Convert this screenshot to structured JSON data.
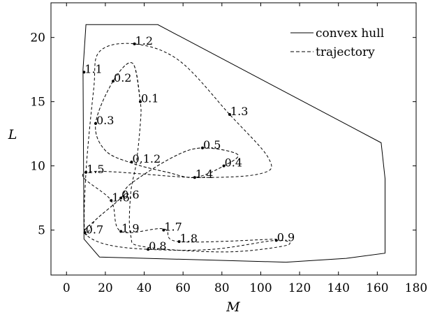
{
  "chart_data": {
    "type": "line",
    "xlabel": "M",
    "ylabel": "L",
    "xlim": [
      -8,
      180
    ],
    "ylim": [
      1.5,
      22.7
    ],
    "x_ticks": [
      0,
      20,
      40,
      60,
      80,
      100,
      120,
      140,
      160,
      180
    ],
    "y_ticks": [
      5,
      10,
      15,
      20
    ],
    "legend_position": "top-right",
    "grid": false,
    "series": [
      {
        "name": "convex hull",
        "style": "solid",
        "points": [
          [
            10,
            21
          ],
          [
            47,
            21
          ],
          [
            162,
            11.8
          ],
          [
            164,
            9
          ],
          [
            164,
            3.2
          ],
          [
            144,
            2.8
          ],
          [
            113,
            2.5
          ],
          [
            17,
            2.9
          ],
          [
            9,
            4.3
          ],
          [
            8.5,
            17.5
          ]
        ]
      },
      {
        "name": "trajectory",
        "style": "dashed",
        "points": [
          [
            38,
            15
          ],
          [
            34,
            18
          ],
          [
            24,
            16.6
          ],
          [
            15,
            13.3
          ],
          [
            20,
            11.2
          ],
          [
            34,
            10.2
          ],
          [
            52,
            9.5
          ],
          [
            66,
            9.1
          ],
          [
            81,
            10
          ],
          [
            88,
            10.9
          ],
          [
            70,
            11.4
          ],
          [
            55,
            10.7
          ],
          [
            33,
            8.6
          ],
          [
            28,
            7.5
          ],
          [
            15,
            5.8
          ],
          [
            9.5,
            4.8
          ],
          [
            20,
            3.9
          ],
          [
            42,
            3.5
          ],
          [
            75,
            3.5
          ],
          [
            108,
            4.2
          ],
          [
            113,
            3.8
          ],
          [
            82,
            3.3
          ],
          [
            40,
            3.7
          ],
          [
            33,
            4.6
          ],
          [
            33,
            7.8
          ],
          [
            36,
            10.3
          ],
          [
            38,
            13.3
          ],
          [
            38,
            15
          ],
          [
            34,
            18
          ],
          [
            24,
            16.6
          ],
          [
            15,
            13.3
          ],
          [
            20,
            11.2
          ],
          [
            34,
            10.2
          ],
          [
            52,
            9.5
          ],
          [
            66,
            9.1
          ],
          [
            81,
            10
          ],
          [
            88,
            10.9
          ],
          [
            70,
            11.4
          ],
          [
            55,
            10.7
          ],
          [
            33,
            8.6
          ],
          [
            28,
            7.5
          ],
          [
            15,
            5.8
          ],
          [
            9.5,
            4.8
          ],
          [
            10,
            9.5
          ],
          [
            14,
            16
          ],
          [
            17,
            18.9
          ],
          [
            35,
            19.5
          ],
          [
            58,
            18.2
          ],
          [
            84,
            14
          ],
          [
            104,
            10.6
          ],
          [
            100,
            9.4
          ],
          [
            66,
            9.1
          ],
          [
            10,
            9.5
          ],
          [
            23,
            7.3
          ],
          [
            28,
            4.9
          ],
          [
            50,
            5.1
          ],
          [
            58,
            4.1
          ],
          [
            108,
            4.3
          ]
        ]
      }
    ],
    "point_labels": [
      {
        "label": "0.1",
        "x": 38,
        "y": 15
      },
      {
        "label": "0.2",
        "x": 24,
        "y": 16.6
      },
      {
        "label": "0.3",
        "x": 15,
        "y": 13.3
      },
      {
        "label": "0.4",
        "x": 81,
        "y": 10
      },
      {
        "label": "0.5",
        "x": 70,
        "y": 11.4
      },
      {
        "label": "0.6",
        "x": 28,
        "y": 7.5
      },
      {
        "label": "0.7",
        "x": 9.5,
        "y": 4.8
      },
      {
        "label": "0.8",
        "x": 42,
        "y": 3.5
      },
      {
        "label": "0.9",
        "x": 108,
        "y": 4.2
      },
      {
        "label": "0,1.2",
        "x": 33.5,
        "y": 10.3
      },
      {
        "label": "1.1",
        "x": 9,
        "y": 17.3
      },
      {
        "label": "1.2",
        "x": 35,
        "y": 19.5
      },
      {
        "label": "1.3",
        "x": 84,
        "y": 14
      },
      {
        "label": "1.4",
        "x": 66,
        "y": 9.1
      },
      {
        "label": "1.5",
        "x": 10,
        "y": 9.5
      },
      {
        "label": "1.6",
        "x": 23,
        "y": 7.3
      },
      {
        "label": "1.7",
        "x": 50,
        "y": 5
      },
      {
        "label": "1.8",
        "x": 58,
        "y": 4.1
      },
      {
        "label": "1.9",
        "x": 28,
        "y": 4.9
      }
    ]
  }
}
